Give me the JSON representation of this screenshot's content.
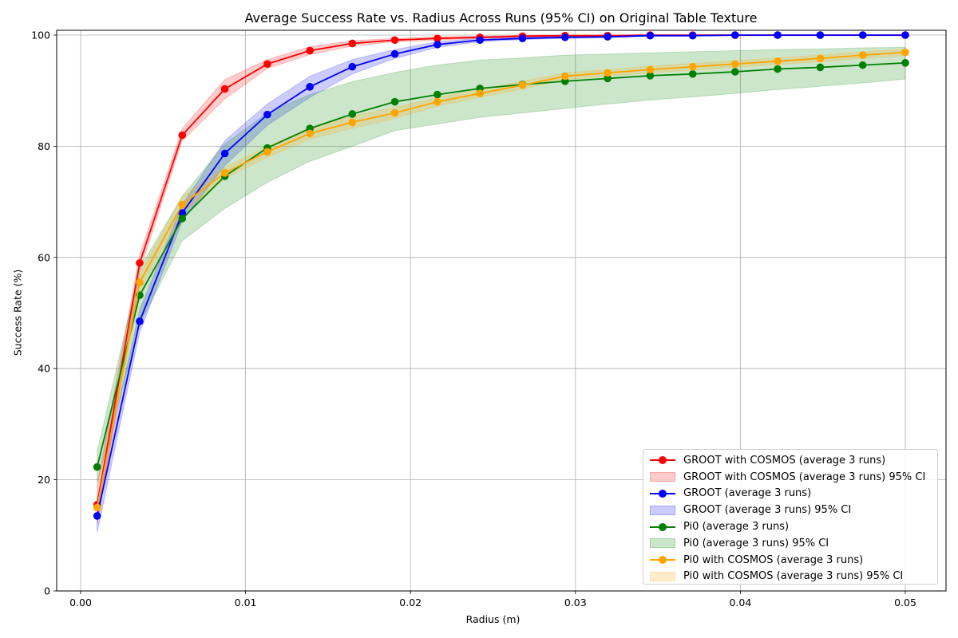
{
  "chart_data": {
    "type": "line",
    "title": "Average Success Rate vs. Radius Across Runs (95% CI) on Original Table Texture",
    "xlabel": "Radius (m)",
    "ylabel": "Success Rate (%)",
    "xlim": [
      -0.0015,
      0.0525
    ],
    "ylim": [
      0,
      101
    ],
    "xticks": [
      0.0,
      0.01,
      0.02,
      0.03,
      0.04,
      0.05
    ],
    "xtick_labels": [
      "0.00",
      "0.01",
      "0.02",
      "0.03",
      "0.04",
      "0.05"
    ],
    "yticks": [
      0,
      20,
      40,
      60,
      80,
      100
    ],
    "ytick_labels": [
      "0",
      "20",
      "40",
      "60",
      "80",
      "100"
    ],
    "grid": true,
    "legend_position": "lower right",
    "x": [
      0.001,
      0.00358,
      0.00616,
      0.00874,
      0.01132,
      0.0139,
      0.01647,
      0.01905,
      0.02163,
      0.02421,
      0.02679,
      0.02937,
      0.03195,
      0.03453,
      0.03711,
      0.03968,
      0.04226,
      0.04484,
      0.04742,
      0.05
    ],
    "series": [
      {
        "name": "GROOT with COSMOS (average 3 runs)",
        "ci_name": "GROOT with COSMOS (average 3 runs) 95% CI",
        "color": "#ff0000",
        "fill": "rgba(255,0,0,0.2)",
        "values": [
          15.5,
          59.0,
          82.0,
          90.3,
          94.8,
          97.2,
          98.5,
          99.1,
          99.4,
          99.6,
          99.8,
          99.9,
          99.9,
          100.0,
          100.0,
          100.0,
          100.0,
          100.0,
          100.0,
          100.0
        ],
        "ci_lower": [
          12.0,
          57.5,
          81.0,
          88.5,
          94.0,
          96.5,
          98.0,
          98.8,
          99.1,
          99.4,
          99.6,
          99.8,
          99.8,
          99.9,
          99.9,
          99.9,
          99.9,
          99.9,
          99.9,
          99.9
        ],
        "ci_upper": [
          19.0,
          60.5,
          83.2,
          92.0,
          95.6,
          97.9,
          99.0,
          99.4,
          99.7,
          99.8,
          100.0,
          100.0,
          100.0,
          100.0,
          100.0,
          100.0,
          100.0,
          100.0,
          100.0,
          100.0
        ]
      },
      {
        "name": "GROOT (average 3 runs)",
        "ci_name": "GROOT (average 3 runs) 95% CI",
        "color": "#0000ff",
        "fill": "rgba(0,0,255,0.2)",
        "values": [
          13.5,
          48.5,
          68.0,
          78.7,
          85.7,
          90.7,
          94.3,
          96.6,
          98.3,
          99.1,
          99.4,
          99.6,
          99.7,
          99.9,
          99.9,
          100.0,
          100.0,
          100.0,
          100.0,
          100.0
        ],
        "ci_lower": [
          10.5,
          46.5,
          66.5,
          76.5,
          83.8,
          88.8,
          93.0,
          95.8,
          97.8,
          98.8,
          99.2,
          99.4,
          99.5,
          99.8,
          99.8,
          99.9,
          99.9,
          99.9,
          99.9,
          99.9
        ],
        "ci_upper": [
          16.5,
          50.5,
          69.5,
          81.0,
          87.6,
          92.6,
          95.6,
          97.4,
          98.8,
          99.4,
          99.6,
          99.8,
          99.9,
          100.0,
          100.0,
          100.0,
          100.0,
          100.0,
          100.0,
          100.0
        ]
      },
      {
        "name": "Pi0 (average 3 runs)",
        "ci_name": "Pi0 (average 3 runs) 95% CI",
        "color": "#008000",
        "fill": "rgba(0,128,0,0.2)",
        "values": [
          22.3,
          53.2,
          67.0,
          74.6,
          79.7,
          83.2,
          85.8,
          88.0,
          89.3,
          90.4,
          91.1,
          91.7,
          92.2,
          92.7,
          93.0,
          93.4,
          93.9,
          94.2,
          94.6,
          95.0
        ],
        "ci_lower": [
          19.5,
          48.0,
          63.0,
          68.8,
          73.5,
          77.3,
          80.0,
          82.8,
          84.0,
          85.2,
          86.0,
          86.8,
          87.6,
          88.3,
          88.9,
          89.5,
          90.2,
          90.8,
          91.4,
          92.1
        ],
        "ci_upper": [
          25.0,
          58.0,
          71.0,
          80.4,
          86.0,
          89.3,
          91.6,
          93.3,
          94.6,
          95.5,
          95.9,
          96.4,
          96.6,
          96.8,
          97.0,
          97.2,
          97.4,
          97.5,
          97.7,
          97.8
        ]
      },
      {
        "name": "Pi0 with COSMOS (average 3 runs)",
        "ci_name": "Pi0 with COSMOS (average 3 runs) 95% CI",
        "color": "#ffa500",
        "fill": "rgba(255,165,0,0.2)",
        "values": [
          15.0,
          55.5,
          69.5,
          75.2,
          79.0,
          82.3,
          84.3,
          86.0,
          88.0,
          89.5,
          91.0,
          92.6,
          93.2,
          93.8,
          94.3,
          94.8,
          95.3,
          95.8,
          96.4,
          96.9
        ],
        "ci_lower": [
          13.5,
          54.0,
          68.0,
          74.2,
          78.0,
          81.3,
          83.2,
          85.0,
          87.2,
          88.8,
          90.3,
          92.0,
          92.6,
          93.2,
          93.7,
          94.2,
          94.7,
          95.2,
          95.8,
          96.3
        ],
        "ci_upper": [
          16.5,
          57.0,
          71.0,
          76.2,
          80.0,
          83.3,
          85.4,
          87.0,
          88.8,
          90.2,
          91.7,
          93.2,
          93.8,
          94.4,
          94.9,
          95.4,
          95.9,
          96.4,
          97.0,
          97.5
        ]
      }
    ]
  },
  "legend": {
    "items": [
      {
        "label": "GROOT with COSMOS (average 3 runs)",
        "kind": "line",
        "color": "#ff0000"
      },
      {
        "label": "GROOT with COSMOS (average 3 runs) 95% CI",
        "kind": "patch",
        "color": "rgba(255,0,0,0.2)"
      },
      {
        "label": "GROOT (average 3 runs)",
        "kind": "line",
        "color": "#0000ff"
      },
      {
        "label": "GROOT (average 3 runs) 95% CI",
        "kind": "patch",
        "color": "rgba(0,0,255,0.2)"
      },
      {
        "label": "Pi0 (average 3 runs)",
        "kind": "line",
        "color": "#008000"
      },
      {
        "label": "Pi0 (average 3 runs) 95% CI",
        "kind": "patch",
        "color": "rgba(0,128,0,0.2)"
      },
      {
        "label": "Pi0 with COSMOS (average 3 runs)",
        "kind": "line",
        "color": "#ffa500"
      },
      {
        "label": "Pi0 with COSMOS (average 3 runs) 95% CI",
        "kind": "patch",
        "color": "rgba(255,165,0,0.2)"
      }
    ]
  }
}
